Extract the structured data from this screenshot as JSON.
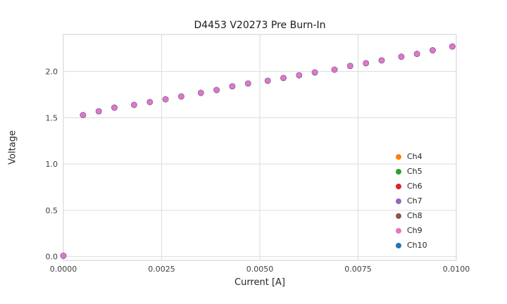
{
  "chart_data": {
    "type": "scatter",
    "title": "D4453 V20273 Pre Burn-In",
    "xlabel": "Current [A]",
    "ylabel": "Voltage",
    "xlim": [
      0.0,
      0.01
    ],
    "ylim": [
      -0.04,
      2.4
    ],
    "grid": true,
    "legend_position": "lower right",
    "x_ticks": [
      "0.0000",
      "0.0025",
      "0.0050",
      "0.0075",
      "0.0100"
    ],
    "x_tick_values": [
      0.0,
      0.0025,
      0.005,
      0.0075,
      0.01
    ],
    "y_ticks": [
      "0.0",
      "0.5",
      "1.0",
      "1.5",
      "2.0"
    ],
    "y_tick_values": [
      0.0,
      0.5,
      1.0,
      1.5,
      2.0
    ],
    "channels_overlap": true,
    "x": [
      0.0,
      0.0005,
      0.0009,
      0.0013,
      0.0018,
      0.0022,
      0.0026,
      0.003,
      0.0035,
      0.0039,
      0.0043,
      0.0047,
      0.0052,
      0.0056,
      0.006,
      0.0064,
      0.0069,
      0.0073,
      0.0077,
      0.0081,
      0.0086,
      0.009,
      0.0094,
      0.0099
    ],
    "y_shared": [
      0.01,
      1.53,
      1.57,
      1.61,
      1.64,
      1.67,
      1.7,
      1.73,
      1.77,
      1.8,
      1.84,
      1.87,
      1.9,
      1.93,
      1.96,
      1.99,
      2.02,
      2.06,
      2.09,
      2.12,
      2.16,
      2.19,
      2.23,
      2.27
    ],
    "series": [
      {
        "name": "Ch4",
        "color": "#ff7f0e"
      },
      {
        "name": "Ch5",
        "color": "#2ca02c"
      },
      {
        "name": "Ch6",
        "color": "#d62728"
      },
      {
        "name": "Ch7",
        "color": "#9467bd"
      },
      {
        "name": "Ch8",
        "color": "#8c564b"
      },
      {
        "name": "Ch9",
        "color": "#e377c2"
      },
      {
        "name": "Ch10",
        "color": "#1f77b4"
      }
    ],
    "colors": {
      "grid": "#dcdcdc",
      "spine": "#cfcfcf",
      "top_marker": "#e377c2"
    }
  }
}
